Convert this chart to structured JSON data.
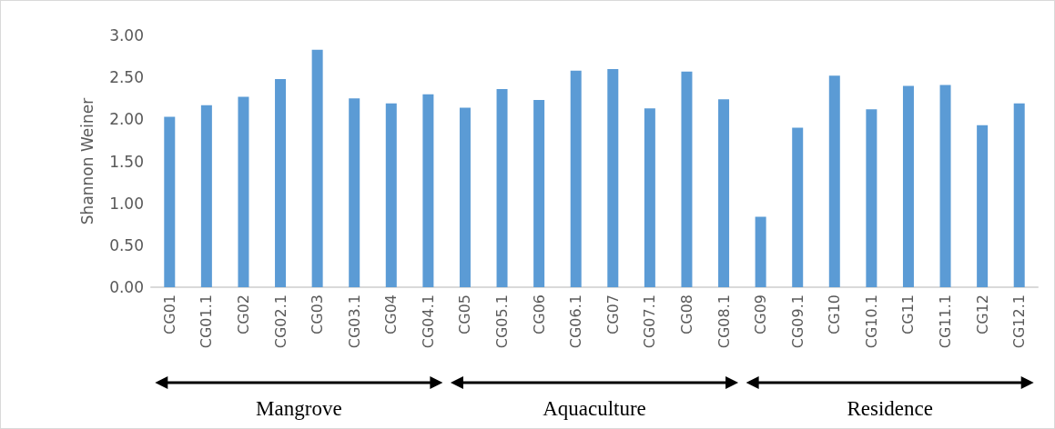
{
  "chart_data": {
    "type": "bar",
    "ylabel": "Shannon Weiner",
    "categories": [
      "CG01",
      "CG01.1",
      "CG02",
      "CG02.1",
      "CG03",
      "CG03.1",
      "CG04",
      "CG04.1",
      "CG05",
      "CG05.1",
      "CG06",
      "CG06.1",
      "CG07",
      "CG07.1",
      "CG08",
      "CG08.1",
      "CG09",
      "CG09.1",
      "CG10",
      "CG10.1",
      "CG11",
      "CG11.1",
      "CG12",
      "CG12.1"
    ],
    "values": [
      2.03,
      2.17,
      2.27,
      2.48,
      2.83,
      2.25,
      2.19,
      2.3,
      2.14,
      2.36,
      2.23,
      2.58,
      2.6,
      2.13,
      2.57,
      2.24,
      0.84,
      1.9,
      2.52,
      2.12,
      2.4,
      2.41,
      1.93,
      2.19
    ],
    "color": "#5b9bd5",
    "ylim": [
      0,
      3
    ],
    "yticks": [
      {
        "value": 0,
        "label": "0.00"
      },
      {
        "value": 0.5,
        "label": "0.50"
      },
      {
        "value": 1,
        "label": "1.00"
      },
      {
        "value": 1.5,
        "label": "1.50"
      },
      {
        "value": 2,
        "label": "2.00"
      },
      {
        "value": 2.5,
        "label": "2.50"
      },
      {
        "value": 3,
        "label": "3.00"
      }
    ],
    "grid": false,
    "annotations": [
      "Mangrove",
      "Aquaculture",
      "Residence"
    ]
  }
}
